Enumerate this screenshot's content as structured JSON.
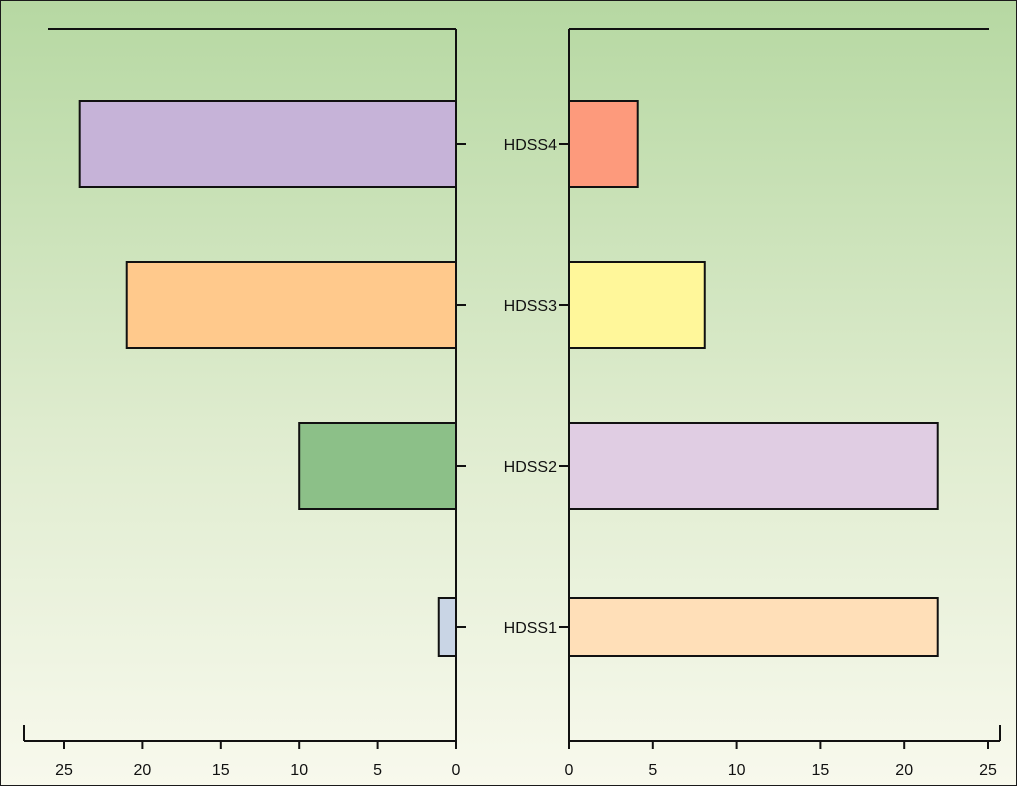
{
  "chart_data": {
    "type": "bar",
    "categories": [
      "HDSS4",
      "HDSS3",
      "HDSS2",
      "HDSS1"
    ],
    "left_panel": {
      "direction": "leftward",
      "xlim": [
        0,
        25
      ],
      "ticks": [
        "25",
        "20",
        "15",
        "10",
        "5",
        "0"
      ],
      "tick_values": [
        25,
        20,
        15,
        10,
        5,
        0
      ],
      "values": [
        24,
        21,
        10,
        1.1
      ],
      "colors": [
        "#c6b3d8",
        "#ffc98c",
        "#8cc088",
        "#c9d5e5"
      ]
    },
    "right_panel": {
      "direction": "rightward",
      "xlim": [
        0,
        25
      ],
      "ticks": [
        "0",
        "5",
        "10",
        "15",
        "20",
        "25"
      ],
      "tick_values": [
        0,
        5,
        10,
        15,
        20,
        25
      ],
      "values": [
        4.1,
        8.1,
        22,
        22
      ],
      "colors": [
        "#fd9a7c",
        "#fff79a",
        "#e0cde3",
        "#ffdfb8"
      ]
    },
    "title": "",
    "xlabel": "",
    "ylabel": "",
    "grid": false,
    "legend": "none"
  }
}
